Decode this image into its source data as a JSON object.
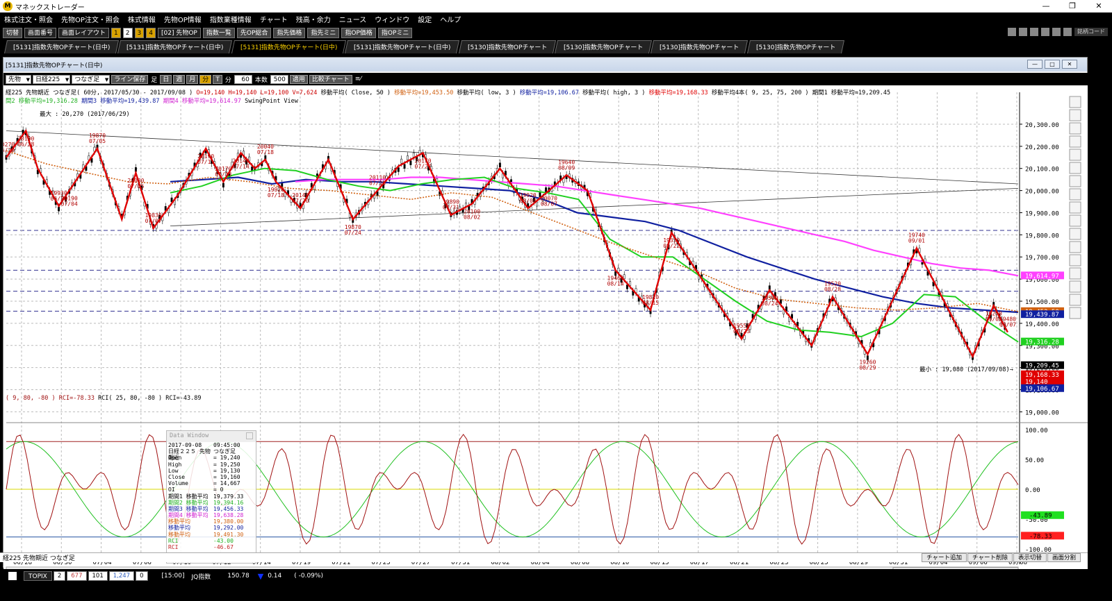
{
  "window": {
    "title": "マネックストレーダー",
    "min": "—",
    "max": "❐",
    "close": "✕"
  },
  "menu": [
    "株式注文・照会",
    "先物OP注文・照会",
    "株式情報",
    "先物OP情報",
    "指数業種情報",
    "チャート",
    "残高・余力",
    "ニュース",
    "ウィンドウ",
    "設定",
    "ヘルプ"
  ],
  "toolbar": {
    "switch": "切替",
    "screen_no": "画面番号",
    "layout": "画面レイアウト",
    "nums": [
      "1",
      "2",
      "3",
      "4"
    ],
    "product": "[02] 先物OP",
    "buttons": [
      "指数一覧",
      "先OP総合",
      "指先価格",
      "指先ミニ",
      "指OP価格",
      "指OPミニ"
    ],
    "code_label": "銘柄コード"
  },
  "tabs": [
    "[5131]指数先物OPチャート(日中)",
    "[5131]指数先物OPチャート(日中)",
    "[5131]指数先物OPチャート(日中)",
    "[5131]指数先物OPチャート(日中)",
    "[5130]指数先物OPチャート",
    "[5130]指数先物OPチャート",
    "[5130]指数先物OPチャート",
    "[5130]指数先物OPチャート"
  ],
  "active_tab": 2,
  "chart_window": {
    "title": "[5131]指数先物OPチャート(日中)",
    "sel_type": "先物",
    "sel_index": "日経225",
    "sel_mode": "つなぎ足",
    "save_btn": "ライン保存",
    "ashi": "足",
    "periods": [
      "日",
      "週",
      "月",
      "分",
      "T"
    ],
    "bun": "分",
    "minutes": "60",
    "count_label": "本数",
    "count": "500",
    "apply": "適用",
    "compare": "比較チャート"
  },
  "info": {
    "line1": "経225 先物期近 つなぎ足( 60分, 2017/05/30 - 2017/09/08 )",
    "ohlc": "O=19,140 H=19,140 L=19,100 V=7,624",
    "ma_close": "移動平均( Close, 50 )",
    "ma_close_val": "移動平均=19,453.50",
    "ma_low": "移動平均( low, 3 )",
    "ma_low_val": "移動平均=19,106.67",
    "ma_high": "移動平均( high, 3 )",
    "ma_high_val": "移動平均=19,168.33",
    "ma4": "移動平均4本( 9, 25, 75, 200 )",
    "period1": "期間1 移動平均=19,209.45",
    "line2a": "間2 移動平均=19,316.28",
    "line2b": "期間3 移動平均=19,439.87",
    "line2c": "期間4 移動平均=19,614.97",
    "line2d": "SwingPoint View",
    "max": "最大 : 20,270 (2017/06/29)",
    "min": "最小 : 19,080 (2017/09/08)→",
    "rci_line": "( 9, 80, -80 ) RCI=-78.33",
    "rci_line2": "RCI( 25, 80, -80 ) RCI=-43.89"
  },
  "price_axis": {
    "ticks": [
      "20,300.00",
      "20,200.00",
      "20,100.00",
      "20,000.00",
      "19,900.00",
      "19,800.00",
      "19,700.00",
      "19,600.00",
      "19,500.00",
      "19,400.00",
      "19,300.00",
      "19,200.00",
      "19,100.00",
      "19,000.00"
    ],
    "tags": [
      {
        "text": "19,614.97",
        "color": "#ff40ff"
      },
      {
        "text": "19,453.50",
        "color": "#d06010"
      },
      {
        "text": "19,439.87",
        "color": "#1020a0"
      },
      {
        "text": "19,316.28",
        "color": "#20d020"
      },
      {
        "text": "19,209.45",
        "color": "#000000"
      },
      {
        "text": "19,168.33",
        "color": "#e00000"
      },
      {
        "text": "19,140",
        "color": "#e00000"
      },
      {
        "text": "19,106.67",
        "color": "#1020a0"
      }
    ]
  },
  "rci_axis": {
    "ticks": [
      "100.00",
      "50.00",
      "0.00",
      "-50.00",
      "-100.00"
    ],
    "tags": [
      {
        "text": "-43.89",
        "color": "#20e020"
      },
      {
        "text": "-78.33",
        "color": "#ff2020"
      }
    ]
  },
  "dates": [
    "06/28",
    "06/30",
    "07/04",
    "07/06",
    "07/10",
    "07/12",
    "07/14",
    "07/19",
    "07/21",
    "07/25",
    "07/27",
    "07/31",
    "08/02",
    "08/04",
    "08/08",
    "08/10",
    "08/15",
    "08/17",
    "08/21",
    "08/23",
    "08/25",
    "08/29",
    "08/31",
    "09/04",
    "09/06",
    "09/08"
  ],
  "swing_labels": [
    {
      "v": "20270",
      "d": "06/29"
    },
    {
      "v": "20100",
      "d": "06/28"
    },
    {
      "v": "19930",
      "d": "06/30"
    },
    {
      "v": "20190",
      "d": "07/04"
    },
    {
      "v": "19870",
      "d": "07/05"
    },
    {
      "v": "20080",
      "d": "07/05"
    },
    {
      "v": "19830",
      "d": "07/07"
    },
    {
      "v": "20190",
      "d": "07/11"
    },
    {
      "v": "20170",
      "d": "07/13"
    },
    {
      "v": "20140",
      "d": "07/14"
    },
    {
      "v": "20040",
      "d": "07/18"
    },
    {
      "v": "19920",
      "d": "07/18"
    },
    {
      "v": "20140",
      "d": "07/20"
    },
    {
      "v": "19870",
      "d": "07/24"
    },
    {
      "v": "20110",
      "d": "07/26"
    },
    {
      "v": "20170",
      "d": "07/27"
    },
    {
      "v": "19890",
      "d": "07/31"
    },
    {
      "v": "20100",
      "d": "08/02"
    },
    {
      "v": "19920",
      "d": "08/04"
    },
    {
      "v": "20070",
      "d": "08/07"
    },
    {
      "v": "19640",
      "d": "08/09"
    },
    {
      "v": "19460",
      "d": "08/14"
    },
    {
      "v": "19810",
      "d": "08/15"
    },
    {
      "v": "19330",
      "d": "08/22"
    },
    {
      "v": "19550",
      "d": "08/23"
    },
    {
      "v": "19300",
      "d": "08/24"
    },
    {
      "v": "19520",
      "d": "08/28"
    },
    {
      "v": "19260",
      "d": "08/29"
    },
    {
      "v": "19740",
      "d": "09/01"
    },
    {
      "v": "19250",
      "d": "09/06"
    },
    {
      "v": "19480",
      "d": "09/07"
    }
  ],
  "datawin": {
    "title": "Data Window",
    "rows": [
      {
        "k": "2017-09-08",
        "v": "09:45:00",
        "c": "#000"
      },
      {
        "k": "日経２２５ 先物期近",
        "v": "つなぎ足",
        "c": "#000"
      },
      {
        "k": "  Open",
        "v": "= 19,240",
        "c": "#000"
      },
      {
        "k": "  High",
        "v": "= 19,250",
        "c": "#000"
      },
      {
        "k": "  Low",
        "v": "= 19,130",
        "c": "#000"
      },
      {
        "k": "  Close",
        "v": "= 19,160",
        "c": "#000"
      },
      {
        "k": "  Volume",
        "v": "= 14,667",
        "c": "#000"
      },
      {
        "k": "  OI",
        "v": "= 0",
        "c": "#000"
      },
      {
        "k": "期間1 移動平均",
        "v": "19,379.33",
        "c": "#000"
      },
      {
        "k": "期間2 移動平均",
        "v": "19,394.16",
        "c": "#20b020"
      },
      {
        "k": "期間3 移動平均",
        "v": "19,456.33",
        "c": "#1020a0"
      },
      {
        "k": "期間4 移動平均",
        "v": "19,638.28",
        "c": "#d020d0"
      },
      {
        "k": "移動平均",
        "v": "19,380.00",
        "c": "#d06010"
      },
      {
        "k": "移動平均",
        "v": "19,292.00",
        "c": "#1020a0"
      },
      {
        "k": "移動平均",
        "v": "19,491.30",
        "c": "#d06010"
      },
      {
        "k": "RCI",
        "v": "-43.00",
        "c": "#20b020"
      },
      {
        "k": "RCI",
        "v": "-46.67",
        "c": "#c02020"
      }
    ]
  },
  "bottom": {
    "label": "経225 先物期近 つなぎ足",
    "buttons": [
      "チャート追加",
      "チャート削除",
      "表示切替",
      "画面分割"
    ]
  },
  "status": {
    "topix": "TOPIX",
    "v1": "2",
    "v2": "677",
    "v3": "101",
    "v4": "1,247",
    "v5": "0",
    "time": "[15:00]",
    "jq": "JQ指数",
    "jq_val": "150.78",
    "chg": "0.14",
    "pct": "( -0.09%)"
  },
  "colors": {
    "ma9": "#000000",
    "ma25": "#20d020",
    "ma75": "#1020a0",
    "ma200": "#ff40ff",
    "ma50c": "#d06010",
    "swing": "#e00000",
    "rci9": "#a01010",
    "rci25": "#20c020"
  }
}
